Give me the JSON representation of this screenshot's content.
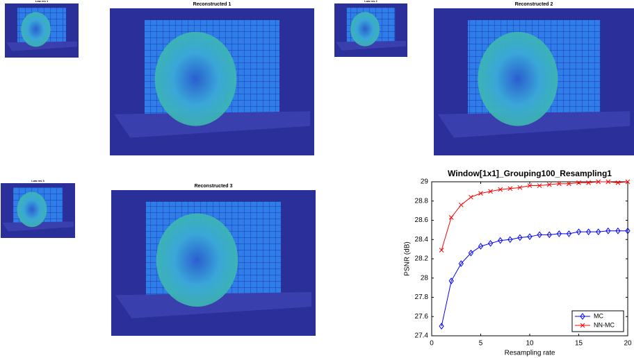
{
  "panels": [
    {
      "title": "Low res 1"
    },
    {
      "title": "Reconstructed 1"
    },
    {
      "title": "Low res 2"
    },
    {
      "title": "Reconstructed 2"
    },
    {
      "title": "Low res 3"
    },
    {
      "title": "Reconstructed 3"
    }
  ],
  "chart_data": {
    "type": "line",
    "title": "Window[1x1]_Grouping100_Resampling1",
    "x_label": "Resampling rate",
    "y_label": "PSNR (dB)",
    "x": [
      1,
      2,
      3,
      4,
      5,
      6,
      7,
      8,
      9,
      10,
      11,
      12,
      13,
      14,
      15,
      16,
      17,
      18,
      19,
      20
    ],
    "series": [
      {
        "name": "MC",
        "color": "#0000ff",
        "marker": "diamond",
        "values": [
          27.5,
          27.97,
          28.15,
          28.26,
          28.33,
          28.36,
          28.39,
          28.4,
          28.42,
          28.43,
          28.45,
          28.45,
          28.46,
          28.46,
          28.48,
          28.48,
          28.48,
          28.49,
          28.49,
          28.49
        ]
      },
      {
        "name": "NN-MC",
        "color": "#ff0000",
        "marker": "x",
        "values": [
          28.29,
          28.63,
          28.76,
          28.84,
          28.88,
          28.9,
          28.92,
          28.93,
          28.94,
          28.96,
          28.96,
          28.97,
          28.98,
          28.98,
          28.99,
          28.99,
          29.0,
          29.0,
          28.99,
          29.0
        ]
      }
    ],
    "xlim": [
      0,
      20
    ],
    "xticks": [
      0,
      5,
      10,
      15,
      20
    ],
    "ylim": [
      27.4,
      29
    ],
    "yticks": [
      27.4,
      27.6,
      27.8,
      28,
      28.2,
      28.4,
      28.6,
      28.8,
      29
    ],
    "legend": "southeast"
  }
}
